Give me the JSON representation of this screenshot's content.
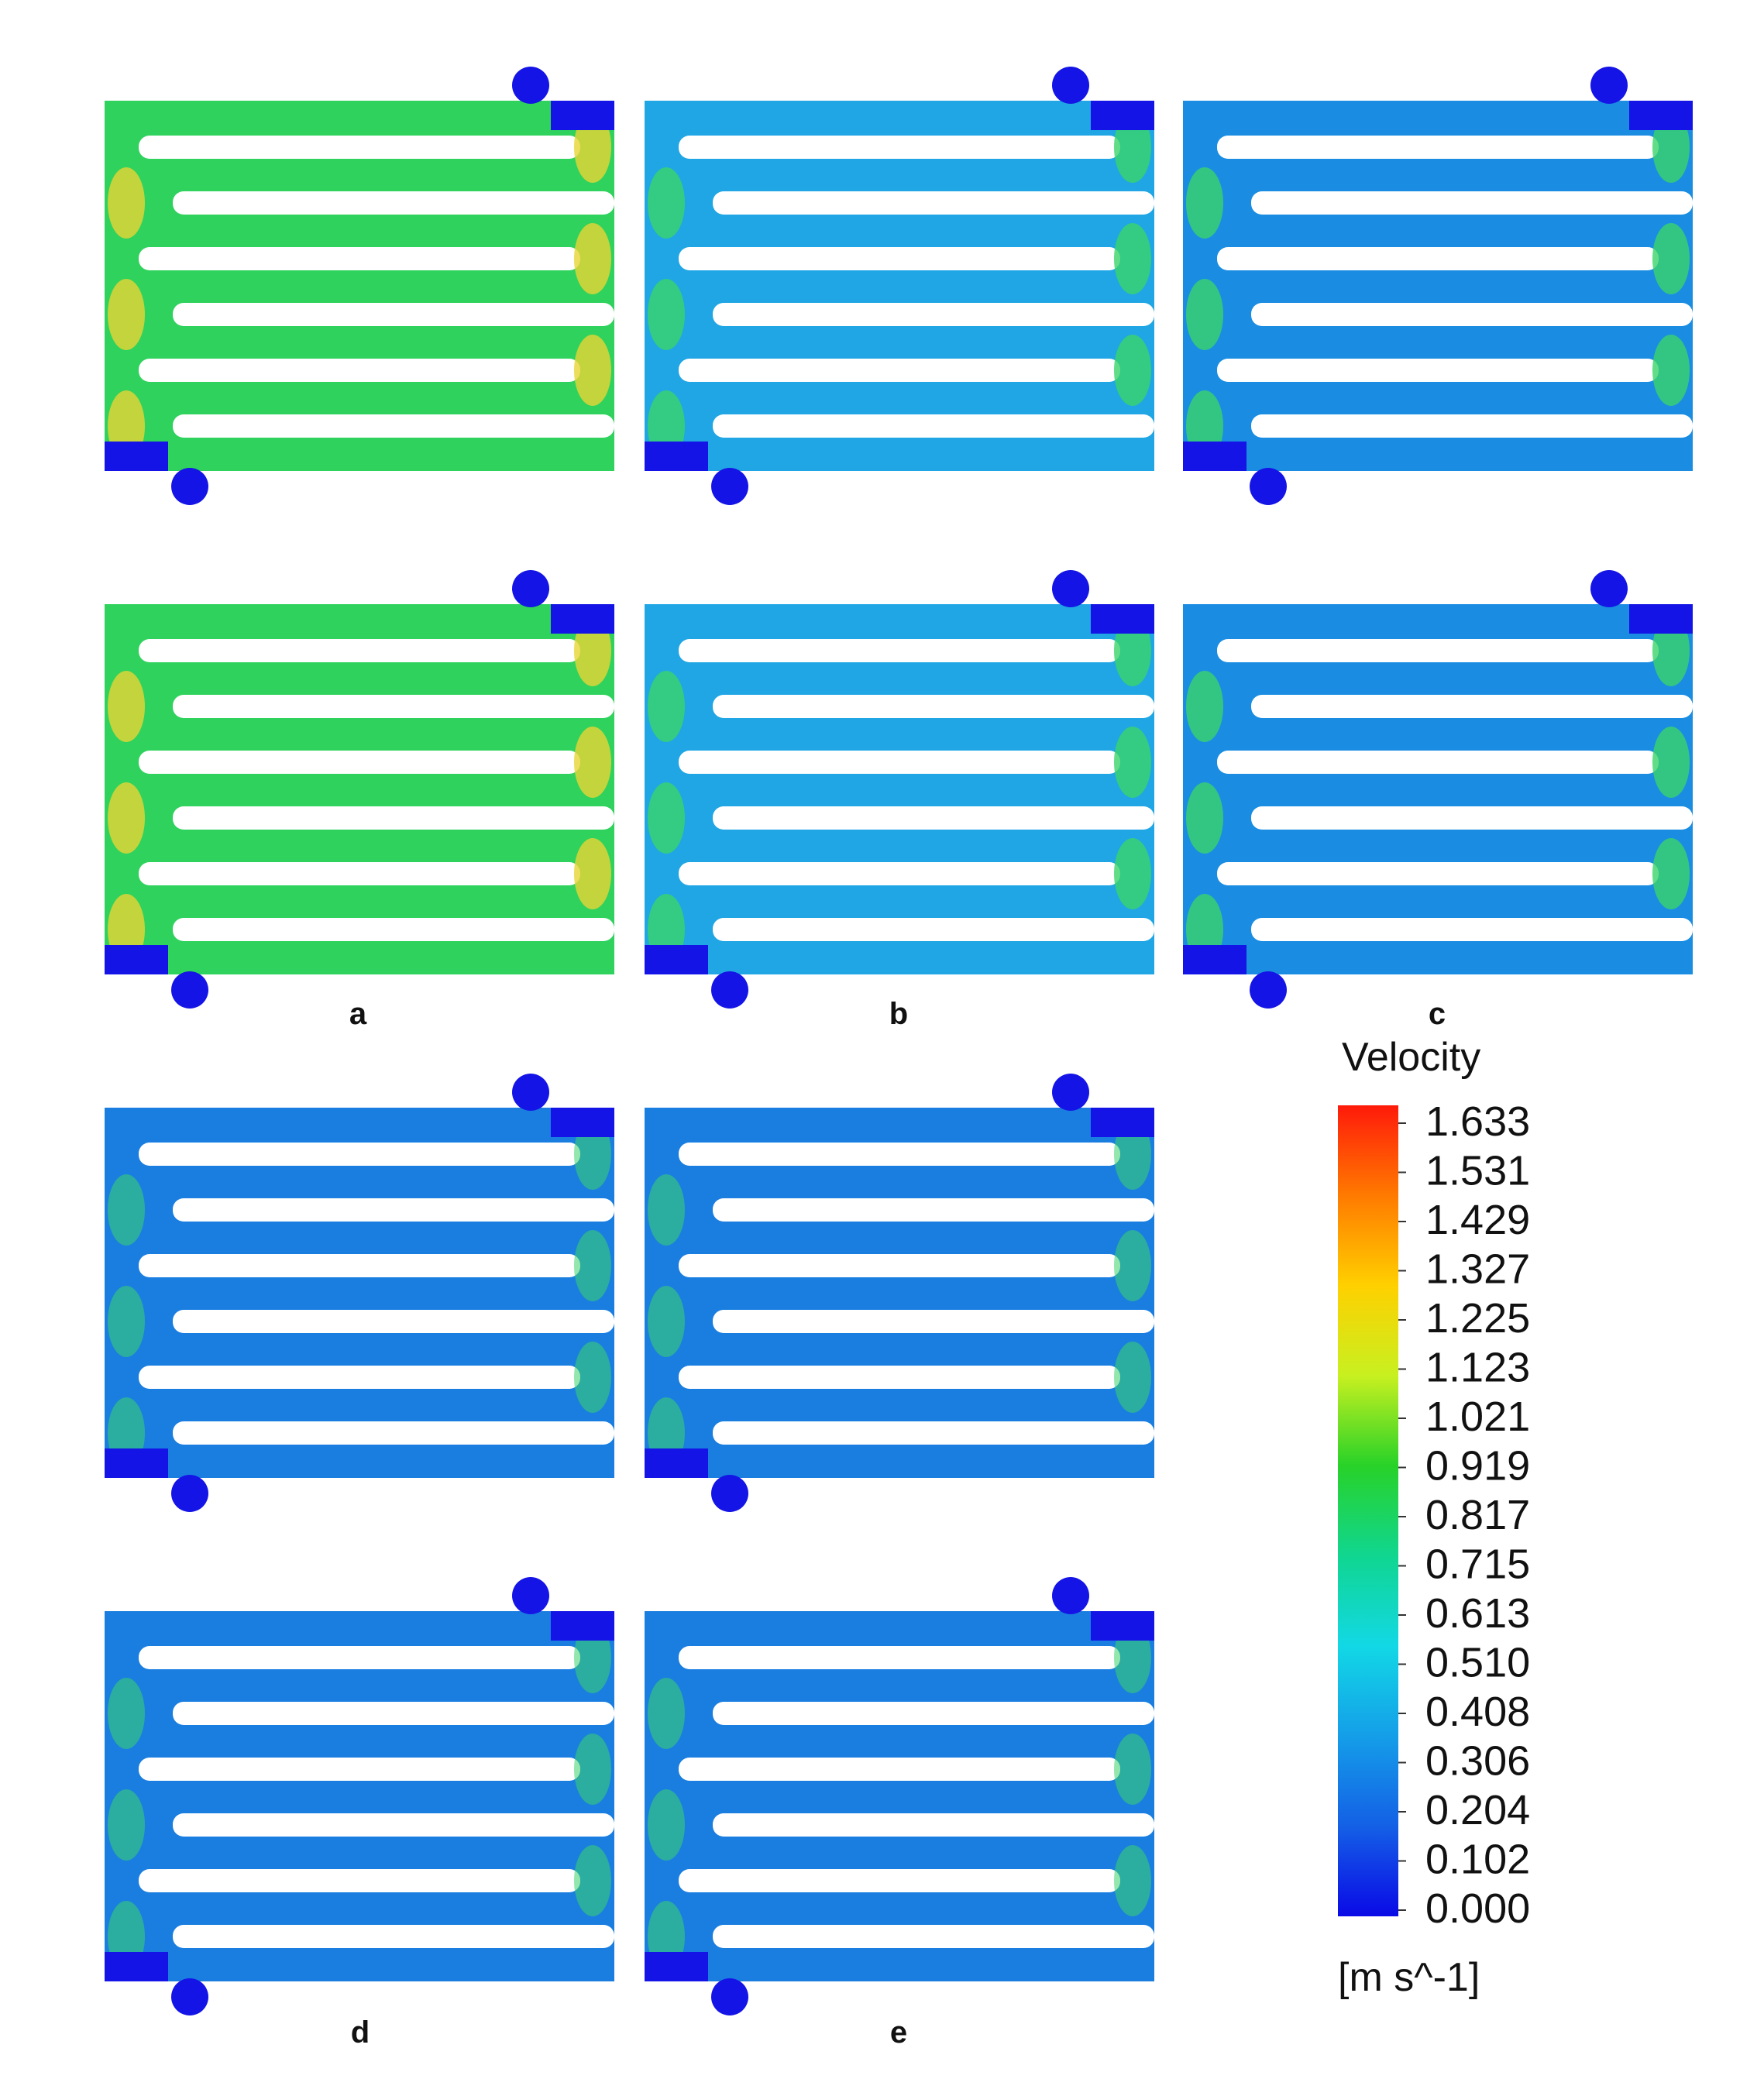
{
  "figure": {
    "panel_labels": [
      "a",
      "b",
      "c",
      "d",
      "e"
    ],
    "panels": [
      {
        "label": "a",
        "column": 1,
        "rows": [
          1,
          2
        ],
        "color_scheme": "high"
      },
      {
        "label": "b",
        "column": 2,
        "rows": [
          1,
          2
        ],
        "color_scheme": "medium"
      },
      {
        "label": "c",
        "column": 3,
        "rows": [
          1,
          2
        ],
        "color_scheme": "low"
      },
      {
        "label": "d",
        "column": 1,
        "rows": [
          3,
          4
        ],
        "color_scheme": "lowest"
      },
      {
        "label": "e",
        "column": 2,
        "rows": [
          3,
          4
        ],
        "color_scheme": "lowest"
      }
    ],
    "colors": {
      "inlet_outlet": "#1414e6",
      "channel_high": "#2fd25c",
      "hotspot_high": "#e8d435",
      "channel_medium": "#20a6e4",
      "channel_low": "#1a8de2",
      "channel_lowest": "#1a7ee0",
      "corner_green": "#3ad46a",
      "wall": "#ffffff"
    }
  },
  "colorbar": {
    "title": "Velocity",
    "unit": "[m s^-1]",
    "ticks": [
      "1.633",
      "1.531",
      "1.429",
      "1.327",
      "1.225",
      "1.123",
      "1.021",
      "0.919",
      "0.817",
      "0.715",
      "0.613",
      "0.510",
      "0.408",
      "0.306",
      "0.204",
      "0.102",
      "0.000"
    ],
    "gradient_stops": [
      "#ff1a0a",
      "#ff7a00",
      "#ffd000",
      "#c8f020",
      "#28d228",
      "#10d690",
      "#12d8e6",
      "#149ee8",
      "#1460e6",
      "#0a0ae6"
    ]
  }
}
